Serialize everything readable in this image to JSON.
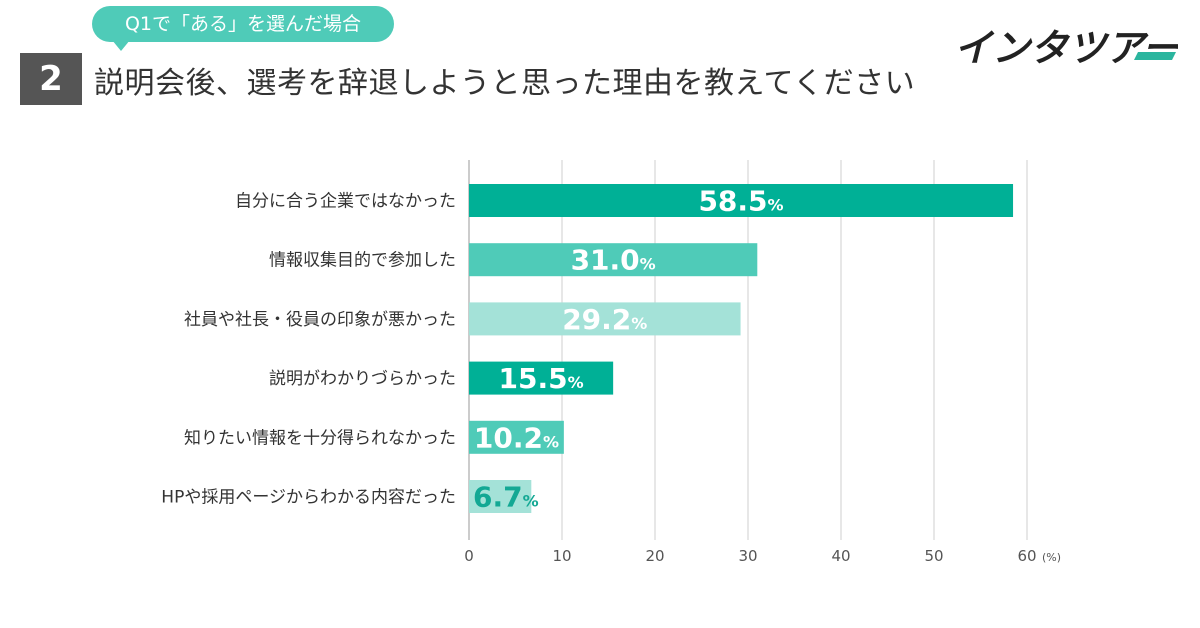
{
  "question_tag": "Q1で「ある」を選んだ場合",
  "question_number": "2",
  "title": "説明会後、選考を辞退しようと思った理由を教えてください",
  "logo": {
    "text": "インタツアー",
    "icon": "intertour-logo"
  },
  "colors": {
    "teal_dark": "#00b096",
    "teal_mid": "#4fcbb8",
    "teal_light": "#a4e2d8",
    "value_text_light": "#ffffff",
    "value_text_on_light": "#ffffff",
    "value_text_dark": "#13a894",
    "grid": "#cfcfcf",
    "bubble": "#4fcbb8",
    "number_box": "#555555"
  },
  "chart_data": {
    "type": "bar",
    "orientation": "horizontal",
    "title": "説明会後、選考を辞退しようと思った理由を教えてください",
    "categories": [
      "自分に合う企業ではなかった",
      "情報収集目的で参加した",
      "社員や社長・役員の印象が悪かった",
      "説明がわかりづらかった",
      "知りたい情報を十分得られなかった",
      "HPや採用ページからわかる内容だった"
    ],
    "values": [
      58.5,
      31.0,
      29.2,
      15.5,
      10.2,
      6.7
    ],
    "value_labels": [
      "58.5",
      "31.0",
      "29.2",
      "15.5",
      "10.2",
      "6.7"
    ],
    "value_suffix": "%",
    "bar_color_keys": [
      "teal_dark",
      "teal_mid",
      "teal_light",
      "teal_dark",
      "teal_mid",
      "teal_light"
    ],
    "xlim": [
      0,
      60
    ],
    "xticks": [
      0,
      10,
      20,
      30,
      40,
      50,
      60
    ],
    "xtick_labels": [
      "0",
      "10",
      "20",
      "30",
      "40",
      "50",
      "60"
    ],
    "unit_label": "(%)",
    "grid": true,
    "xlabel": "",
    "ylabel": ""
  }
}
